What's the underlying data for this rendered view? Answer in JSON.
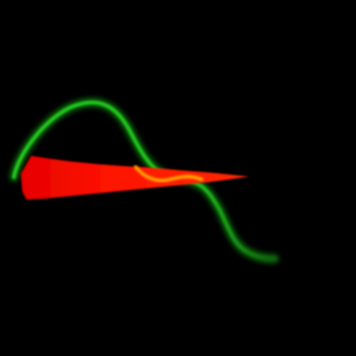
{
  "scene": {
    "background": "#000000",
    "green_curve_color": "#1ec81e",
    "red_wedge_color": "#ff1a00",
    "overlap_glow_color": "#ffb400"
  }
}
